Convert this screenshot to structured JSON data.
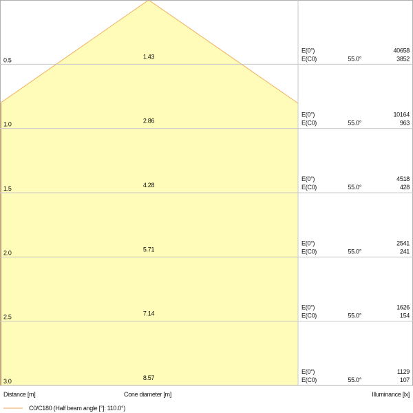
{
  "rows": [
    {
      "distance": "0.5",
      "diameter": "1.43",
      "e0_label": "E(0°)",
      "e0_value": "40658",
      "ec0_label": "E(C0)",
      "angle": "55.0°",
      "ec0_value": "3852"
    },
    {
      "distance": "1.0",
      "diameter": "2.86",
      "e0_label": "E(0°)",
      "e0_value": "10164",
      "ec0_label": "E(C0)",
      "angle": "55.0°",
      "ec0_value": "963"
    },
    {
      "distance": "1.5",
      "diameter": "4.28",
      "e0_label": "E(0°)",
      "e0_value": "4518",
      "ec0_label": "E(C0)",
      "angle": "55.0°",
      "ec0_value": "428"
    },
    {
      "distance": "2.0",
      "diameter": "5.71",
      "e0_label": "E(0°)",
      "e0_value": "2541",
      "ec0_label": "E(C0)",
      "angle": "55.0°",
      "ec0_value": "241"
    },
    {
      "distance": "2.5",
      "diameter": "7.14",
      "e0_label": "E(0°)",
      "e0_value": "1626",
      "ec0_label": "E(C0)",
      "angle": "55.0°",
      "ec0_value": "154"
    },
    {
      "distance": "3.0",
      "diameter": "8.57",
      "e0_label": "E(0°)",
      "e0_value": "1129",
      "ec0_label": "E(C0)",
      "angle": "55.0°",
      "ec0_value": "107"
    }
  ],
  "footer": {
    "distance_label": "Distance [m]",
    "diameter_label": "Cone diameter [m]",
    "illuminance_label": "Illuminance [lx]"
  },
  "legend": {
    "label": "C0/C180 (Half beam angle [°]: 110.0°)",
    "color": "#f0a050"
  },
  "colors": {
    "cone_fill": "#fffbb8",
    "cone_edge": "#f0b060",
    "grid": "#c8c8c8"
  }
}
